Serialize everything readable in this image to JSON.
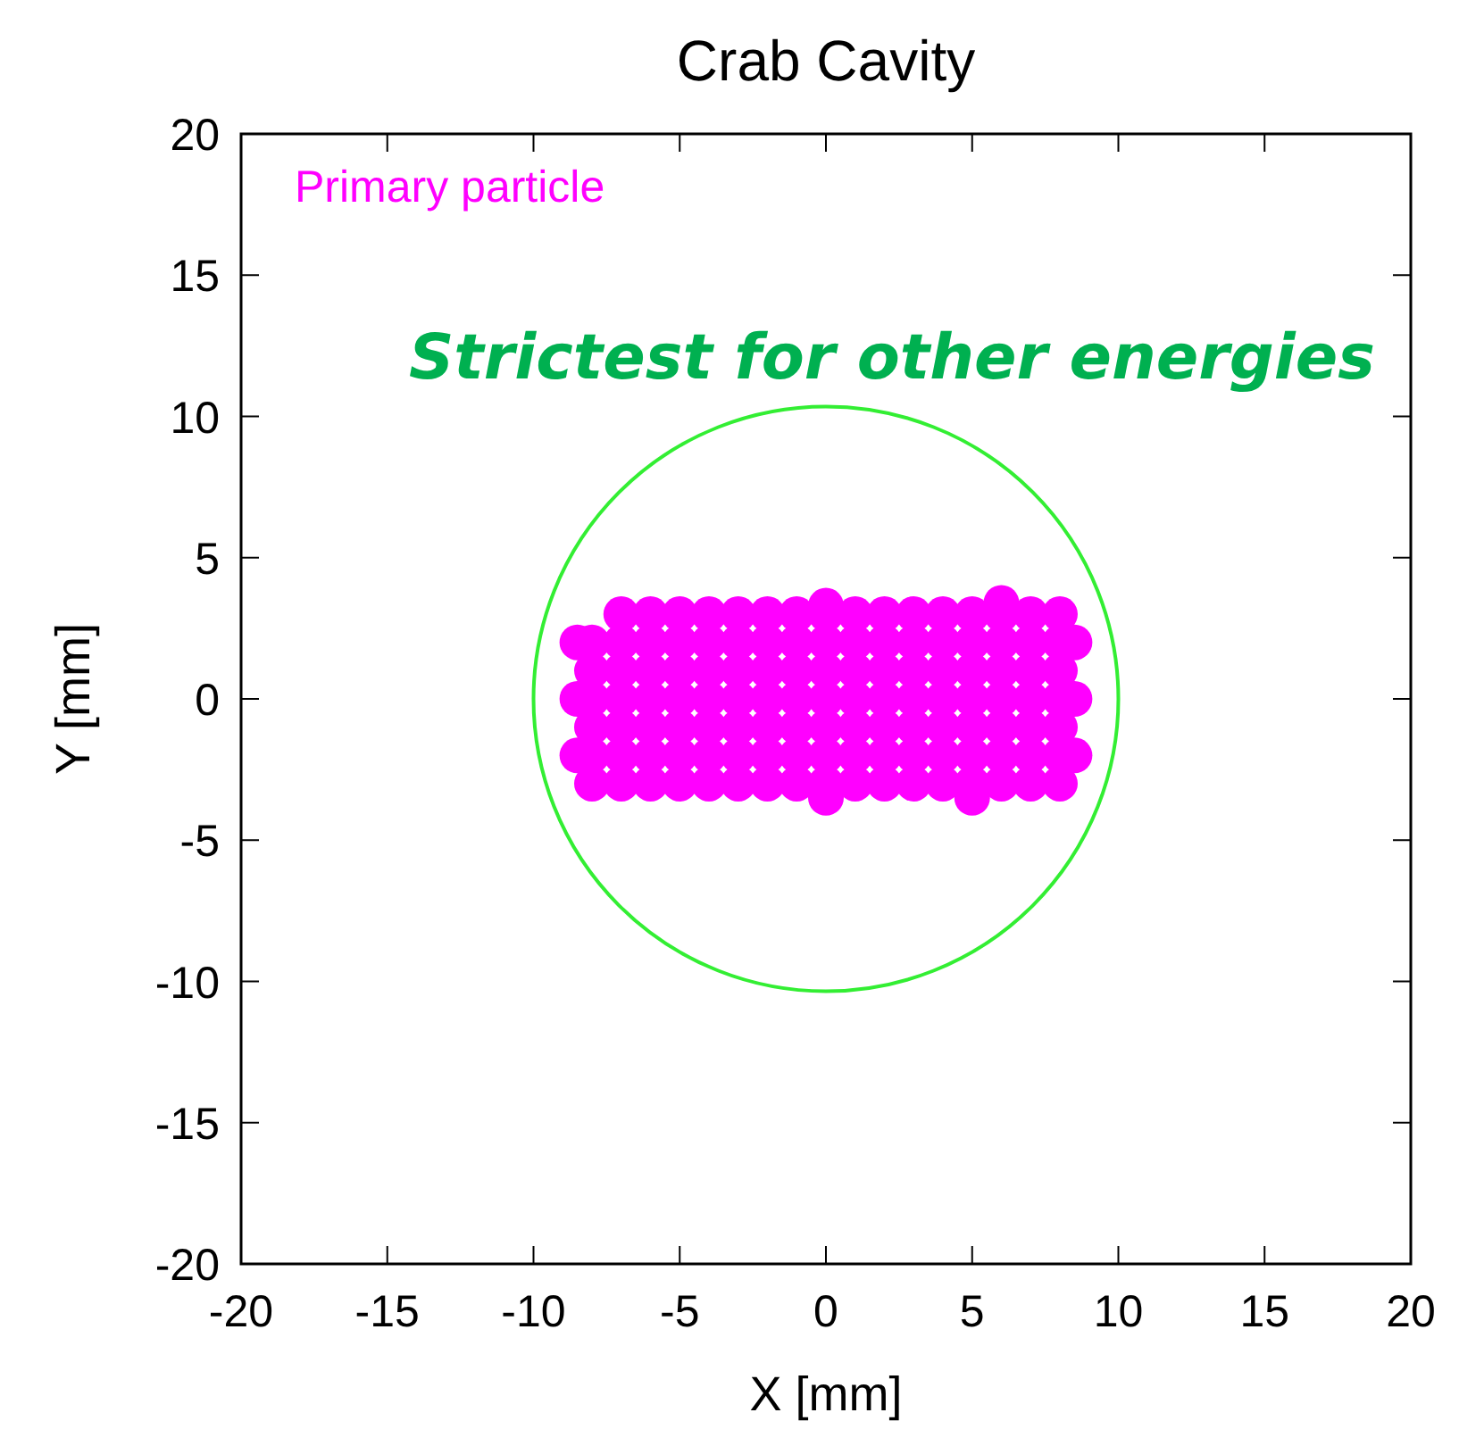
{
  "chart_data": {
    "type": "scatter",
    "title": "Crab Cavity",
    "xlabel": "X [mm]",
    "ylabel": "Y [mm]",
    "xlim": [
      -20,
      20
    ],
    "ylim": [
      -20,
      20
    ],
    "xticks": [
      -20,
      -15,
      -10,
      -5,
      0,
      5,
      10,
      15,
      20
    ],
    "yticks": [
      -20,
      -15,
      -10,
      -5,
      0,
      5,
      10,
      15,
      20
    ],
    "grid": false,
    "legend": "top left",
    "marker": "circle",
    "annotations": [
      "Strictest for other energies"
    ],
    "series": [
      {
        "name": "Primary particle",
        "color": "#ff00ff",
        "x": [
          -8,
          -7,
          -6,
          -5,
          -4,
          -3,
          -2,
          -1,
          0,
          1,
          2,
          3,
          4,
          5,
          6,
          7,
          8,
          -8,
          -7,
          -6,
          -5,
          -4,
          -3,
          -2,
          -1,
          0,
          1,
          2,
          3,
          4,
          5,
          6,
          7,
          8,
          -8,
          -7,
          -6,
          -5,
          -4,
          -3,
          -2,
          -1,
          0,
          1,
          2,
          3,
          4,
          5,
          6,
          7,
          8,
          -8,
          -7,
          -6,
          -5,
          -4,
          -3,
          -2,
          -1,
          0,
          1,
          2,
          3,
          4,
          5,
          6,
          7,
          8,
          -8,
          -7,
          -6,
          -5,
          -4,
          -3,
          -2,
          -1,
          0,
          1,
          2,
          3,
          4,
          5,
          6,
          7,
          8,
          -8,
          -7,
          -6,
          -5,
          -4,
          -3,
          -2,
          -1,
          0,
          1,
          2,
          3,
          4,
          5,
          6,
          7,
          8,
          -7,
          -6,
          -5,
          -4,
          -3,
          -2,
          -1,
          0,
          1,
          2,
          3,
          4,
          5,
          6,
          7,
          8,
          -8.5,
          8.5,
          -8.5,
          -8.5,
          8.5,
          8.5,
          6,
          0,
          0,
          5
        ],
        "values": [
          -3,
          -3,
          -3,
          -3,
          -3,
          -3,
          -3,
          -3,
          -3,
          -3,
          -3,
          -3,
          -3,
          -3,
          -3,
          -3,
          -3,
          -2,
          -2,
          -2,
          -2,
          -2,
          -2,
          -2,
          -2,
          -2,
          -2,
          -2,
          -2,
          -2,
          -2,
          -2,
          -2,
          -2,
          -1,
          -1,
          -1,
          -1,
          -1,
          -1,
          -1,
          -1,
          -1,
          -1,
          -1,
          -1,
          -1,
          -1,
          -1,
          -1,
          -1,
          0,
          0,
          0,
          0,
          0,
          0,
          0,
          0,
          0,
          0,
          0,
          0,
          0,
          0,
          0,
          0,
          0,
          1,
          1,
          1,
          1,
          1,
          1,
          1,
          1,
          1,
          1,
          1,
          1,
          1,
          1,
          1,
          1,
          1,
          2,
          2,
          2,
          2,
          2,
          2,
          2,
          2,
          2,
          2,
          2,
          2,
          2,
          2,
          2,
          2,
          2,
          3,
          3,
          3,
          3,
          3,
          3,
          3,
          3,
          3,
          3,
          3,
          3,
          3,
          3,
          3,
          3,
          0,
          0,
          -2,
          2,
          2,
          -2,
          3.4,
          3.3,
          -3.5,
          -3.5
        ]
      }
    ]
  }
}
